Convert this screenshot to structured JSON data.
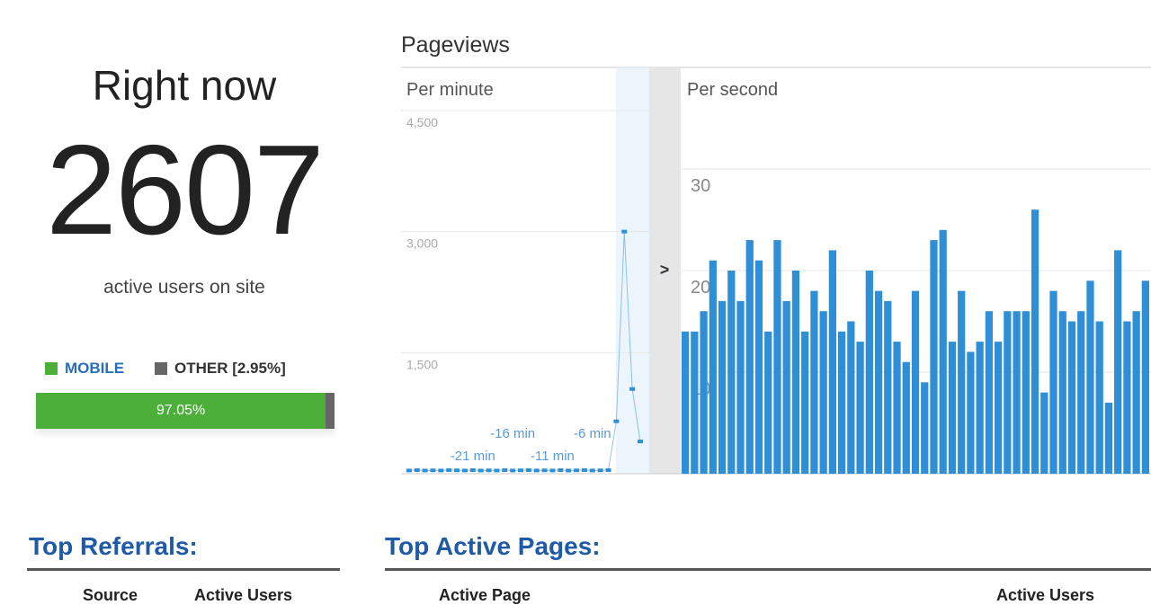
{
  "overview": {
    "title": "Right now",
    "count": "2607",
    "caption": "active users on site"
  },
  "device": {
    "series": [
      {
        "name": "MOBILE",
        "color": "#4caf3a",
        "value": 97.05,
        "value_label": "97.05%"
      },
      {
        "name": "OTHER [2.95%]",
        "color": "#666666",
        "value": 2.95
      }
    ]
  },
  "pageviews": {
    "title": "Pageviews",
    "chart_data": [
      {
        "type": "line",
        "title": "Per minute",
        "color": "#2e8ed6",
        "x": [
          -29,
          -28,
          -27,
          -26,
          -25,
          -24,
          -23,
          -22,
          -21,
          -20,
          -19,
          -18,
          -17,
          -16,
          -15,
          -14,
          -13,
          -12,
          -11,
          -10,
          -9,
          -8,
          -7,
          -6,
          -5,
          -4,
          -3,
          -2,
          -1,
          0
        ],
        "values": [
          40,
          45,
          40,
          42,
          40,
          45,
          42,
          40,
          45,
          40,
          42,
          40,
          45,
          40,
          42,
          45,
          40,
          42,
          40,
          45,
          40,
          42,
          45,
          40,
          42,
          45,
          650,
          3000,
          1050,
          400
        ],
        "xlim": [
          -30,
          0
        ],
        "xticks": [
          {
            "value": -21,
            "label": "-21 min"
          },
          {
            "value": -16,
            "label": "-16 min"
          },
          {
            "value": -11,
            "label": "-11 min"
          },
          {
            "value": -6,
            "label": "-6 min"
          }
        ],
        "ylim": [
          0,
          4500
        ],
        "yticks": [
          {
            "value": 1500,
            "label": "1,500"
          },
          {
            "value": 3000,
            "label": "3,000"
          },
          {
            "value": 4500,
            "label": "4,500"
          }
        ],
        "grid": true
      },
      {
        "type": "bar",
        "title": "Per second",
        "color": "#2e8ed6",
        "values": [
          14,
          14,
          16,
          21,
          17,
          20,
          17,
          23,
          21,
          14,
          23,
          17,
          20,
          14,
          18,
          16,
          22,
          14,
          15,
          13,
          20,
          18,
          17,
          13,
          11,
          18,
          9,
          23,
          24,
          13,
          18,
          12,
          13,
          16,
          13,
          16,
          16,
          16,
          26,
          8,
          18,
          16,
          15,
          16,
          19,
          15,
          7,
          22,
          15,
          16,
          19
        ],
        "ylim": [
          0,
          40
        ],
        "yticks": [
          10,
          20,
          30
        ],
        "grid": true
      }
    ]
  },
  "referrals": {
    "title": "Top Referrals:",
    "columns": [
      "Source",
      "Active Users"
    ]
  },
  "pages": {
    "title": "Top Active Pages:",
    "columns": [
      "Active Page",
      "Active Users"
    ]
  }
}
